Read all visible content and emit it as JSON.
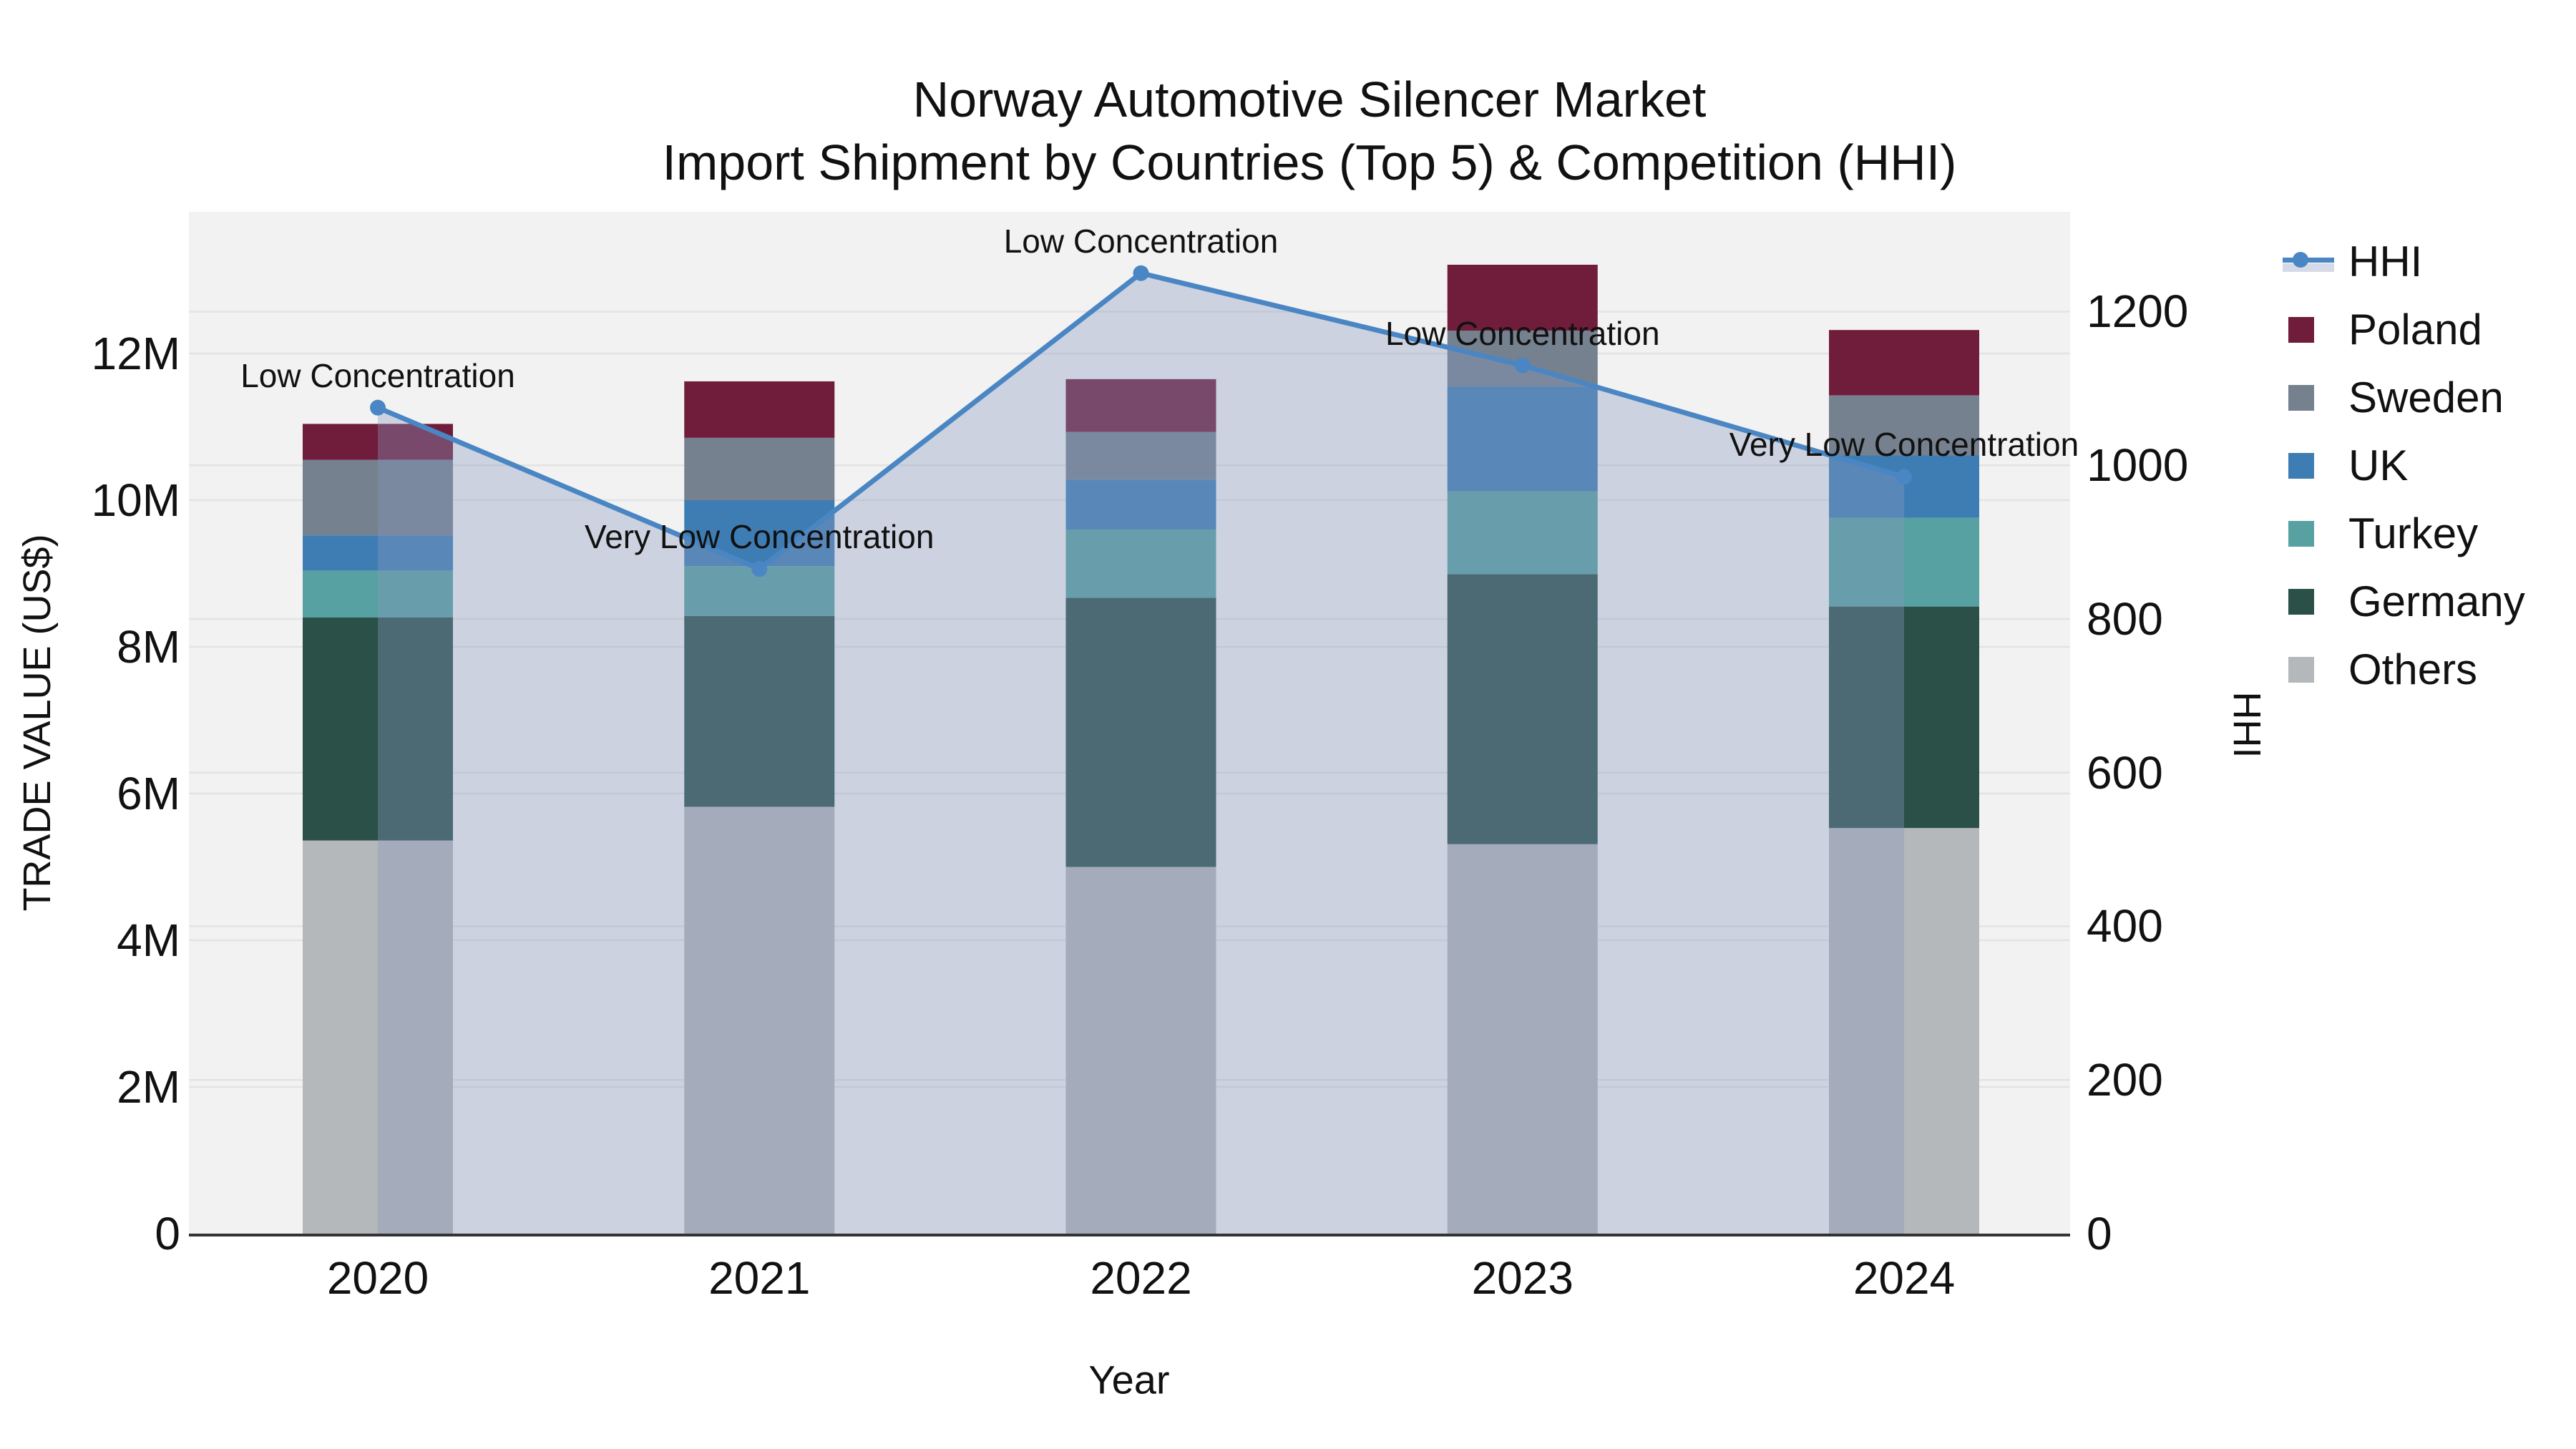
{
  "title": {
    "line1": "Norway Automotive Silencer Market",
    "line2": "Import Shipment by Countries (Top 5) & Competition (HHI)"
  },
  "axes": {
    "left_title": "TRADE VALUE (US$)",
    "right_title": "HHI",
    "x_title": "Year",
    "left_tick_labels": [
      "0",
      "2M",
      "4M",
      "6M",
      "8M",
      "10M",
      "12M"
    ],
    "left_tick_values": [
      0,
      2,
      4,
      6,
      8,
      10,
      12
    ],
    "right_tick_labels": [
      "0",
      "200",
      "400",
      "600",
      "800",
      "1000",
      "1200"
    ],
    "right_tick_values": [
      0,
      200,
      400,
      600,
      800,
      1000,
      1200
    ]
  },
  "legend": {
    "items": [
      {
        "label": "HHI",
        "type": "line",
        "color": "#4a86c3"
      },
      {
        "label": "Poland",
        "type": "swatch",
        "color": "#701d3c"
      },
      {
        "label": "Sweden",
        "type": "swatch",
        "color": "#75818f"
      },
      {
        "label": "UK",
        "type": "swatch",
        "color": "#3e7db4"
      },
      {
        "label": "Turkey",
        "type": "swatch",
        "color": "#57a1a2"
      },
      {
        "label": "Germany",
        "type": "swatch",
        "color": "#2a5048"
      },
      {
        "label": "Others",
        "type": "swatch",
        "color": "#b5b8ba"
      }
    ]
  },
  "chart_data": {
    "type": "bar",
    "subtype": "stacked-bars-with-line",
    "title": "Norway Automotive Silencer Market — Import Shipment by Countries (Top 5) & Competition (HHI)",
    "xlabel": "Year",
    "ylabel_left": "TRADE VALUE (US$)",
    "ylabel_right": "HHI",
    "categories": [
      "2020",
      "2021",
      "2022",
      "2023",
      "2024"
    ],
    "stack_order_bottom_to_top": [
      "Others",
      "Germany",
      "Turkey",
      "UK",
      "Sweden",
      "Poland"
    ],
    "series": [
      {
        "name": "Poland",
        "unit": "M US$",
        "color": "#701d3c",
        "values": [
          0.49,
          0.77,
          0.72,
          0.9,
          0.89
        ]
      },
      {
        "name": "Sweden",
        "unit": "M US$",
        "color": "#75818f",
        "values": [
          1.03,
          0.85,
          0.65,
          0.76,
          0.82
        ]
      },
      {
        "name": "UK",
        "unit": "M US$",
        "color": "#3e7db4",
        "values": [
          0.48,
          0.9,
          0.68,
          1.43,
          0.85
        ]
      },
      {
        "name": "Turkey",
        "unit": "M US$",
        "color": "#57a1a2",
        "values": [
          0.64,
          0.68,
          0.93,
          1.13,
          1.21
        ]
      },
      {
        "name": "Germany",
        "unit": "M US$",
        "color": "#2a5048",
        "values": [
          3.04,
          2.6,
          3.67,
          3.68,
          3.02
        ]
      },
      {
        "name": "Others",
        "unit": "M US$",
        "color": "#b5b8ba",
        "values": [
          5.36,
          5.82,
          5.0,
          5.31,
          5.53
        ]
      }
    ],
    "bar_totals_musd": [
      11.04,
      11.62,
      11.65,
      13.21,
      12.32
    ],
    "line_series": {
      "name": "HHI",
      "color": "#4a86c3",
      "values": [
        1075,
        865,
        1250,
        1130,
        985
      ],
      "area_fill": "rgba(137,152,190,0.36)"
    },
    "annotations": [
      {
        "category": "2020",
        "text": "Low Concentration"
      },
      {
        "category": "2021",
        "text": "Very Low Concentration"
      },
      {
        "category": "2022",
        "text": "Low Concentration"
      },
      {
        "category": "2023",
        "text": "Low Concentration"
      },
      {
        "category": "2024",
        "text": "Very Low Concentration"
      }
    ],
    "ylim_left_musd": [
      0,
      13.9
    ],
    "ylim_right_hhi": [
      0,
      1330
    ],
    "grid": true,
    "legend_position": "right",
    "plot_bg": "#f2f2f2",
    "grid_color": "#e3e3e3",
    "axis_line_color": "#333333"
  }
}
